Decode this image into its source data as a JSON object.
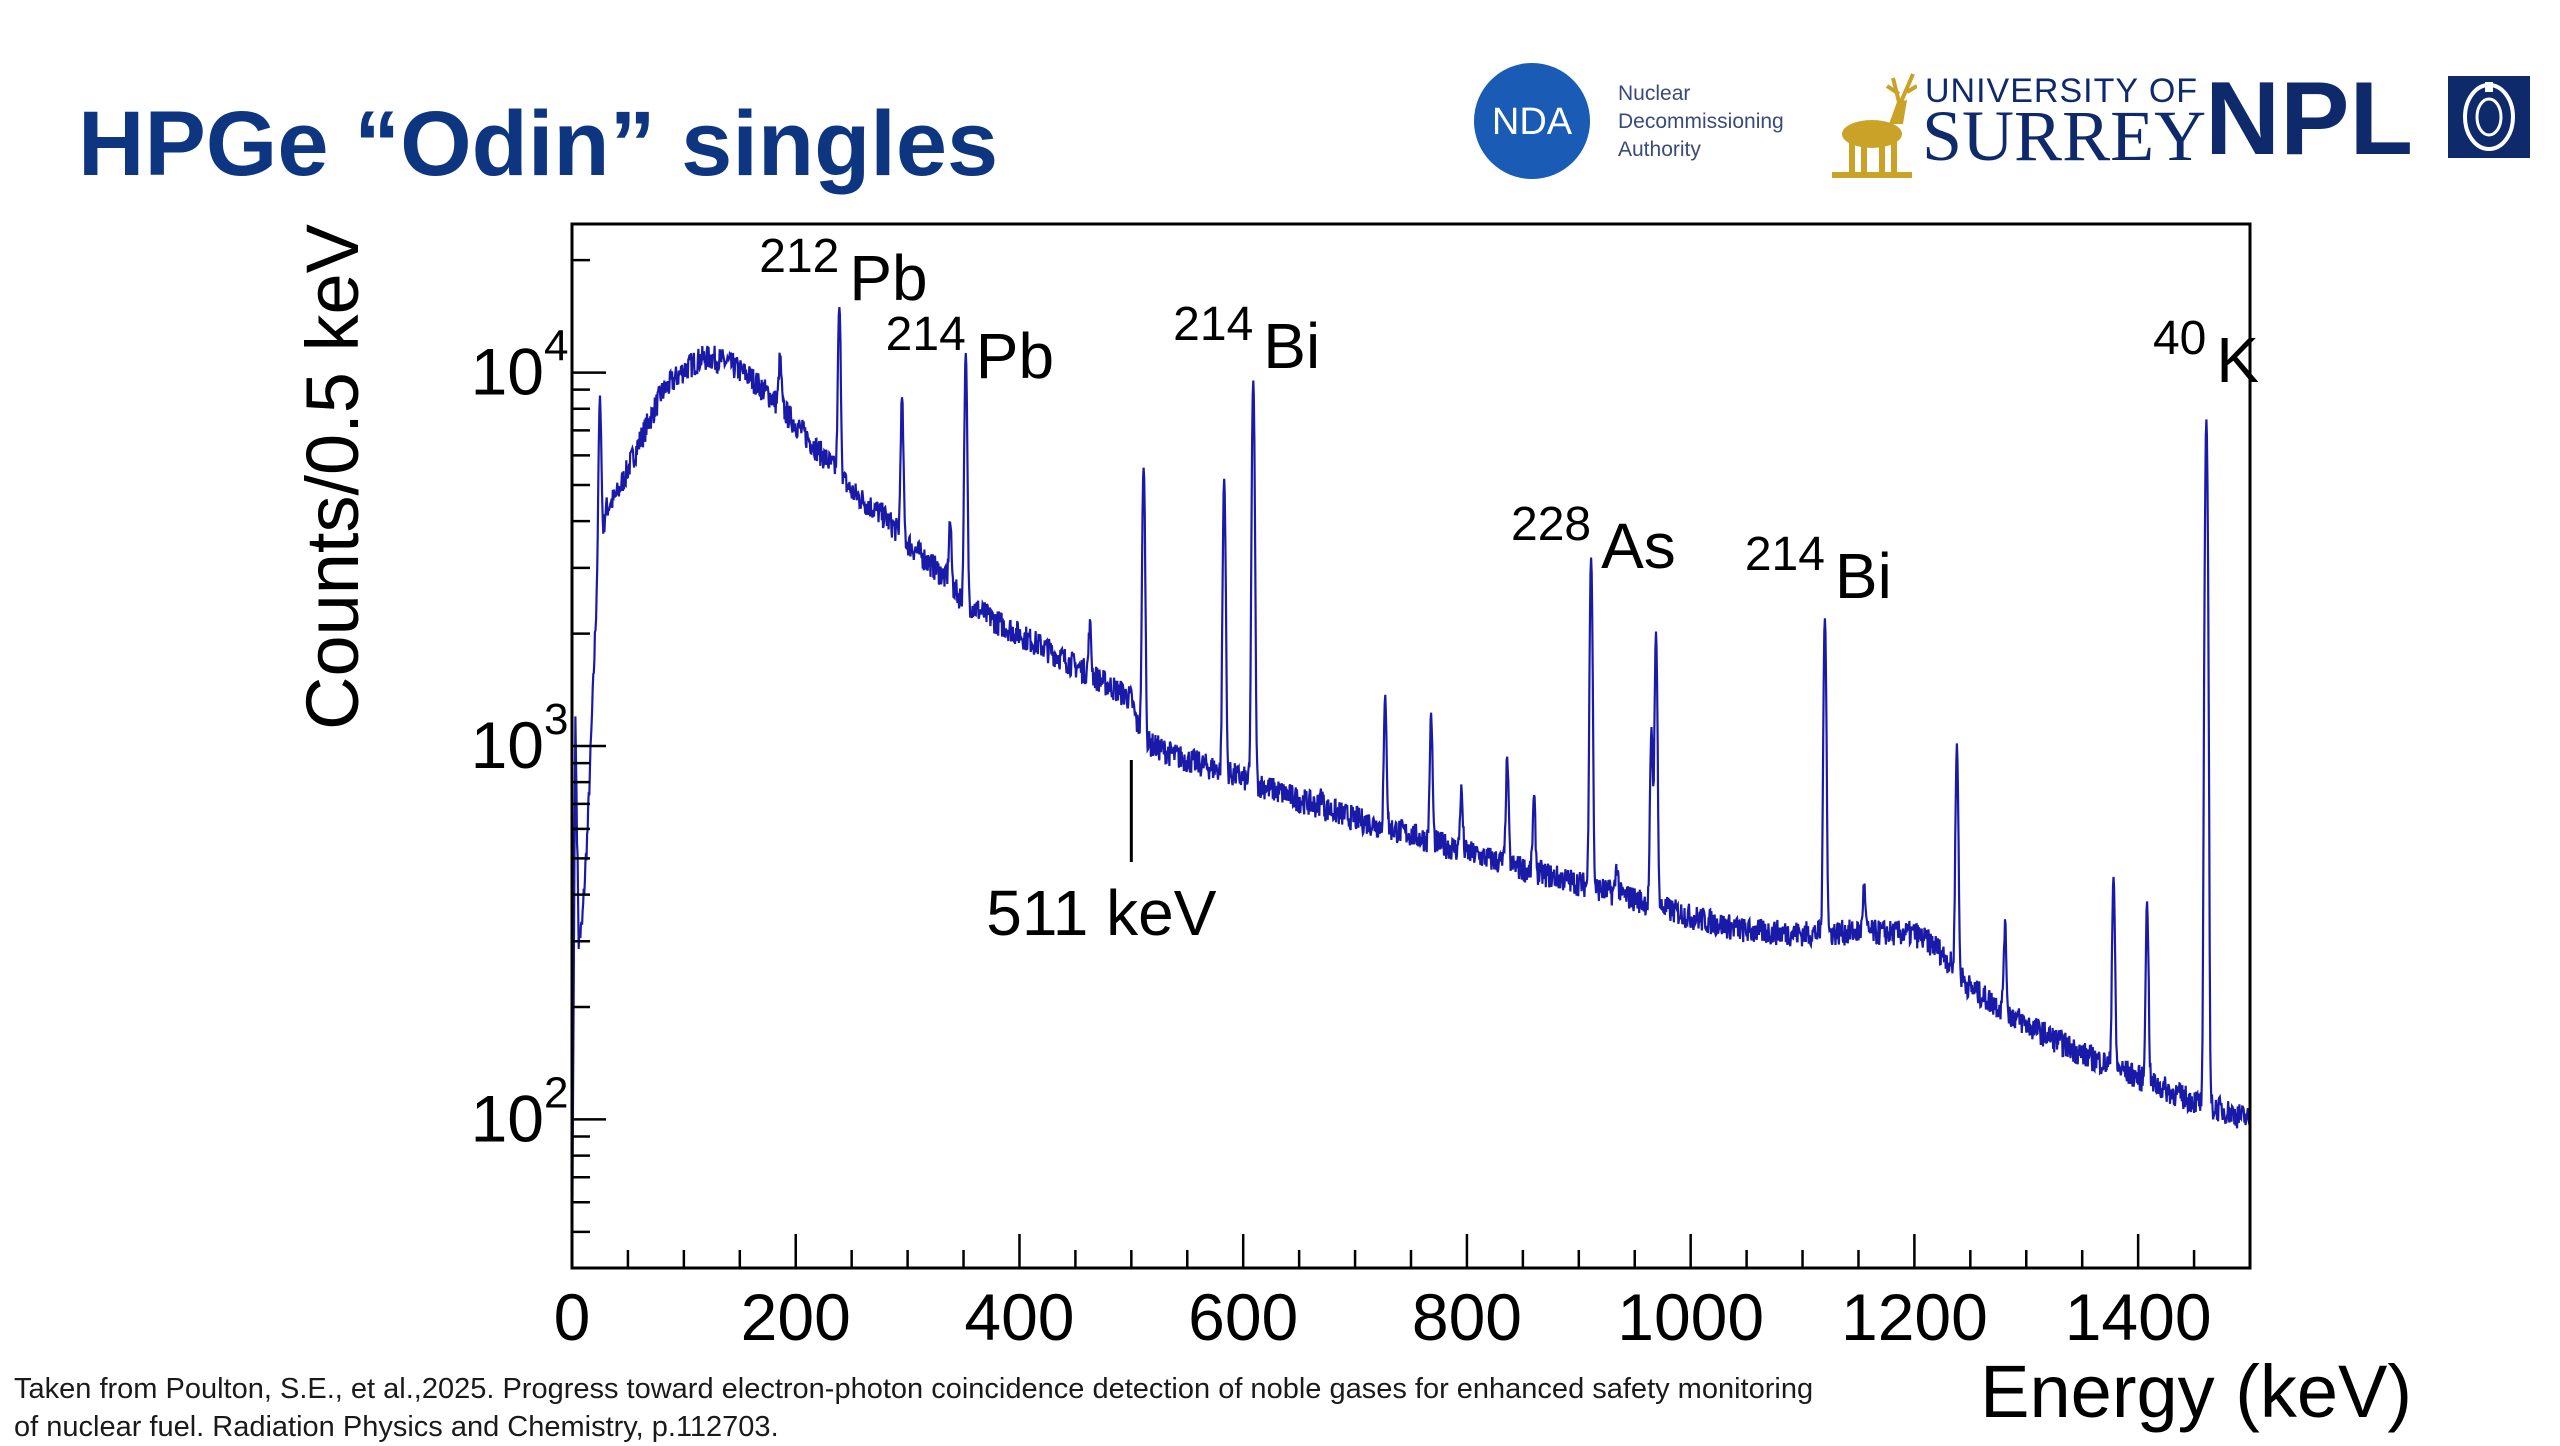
{
  "slide": {
    "title": "HPGe “Odin” singles",
    "citation": "Taken from Poulton, S.E., et al.,2025. Progress toward electron-photon coincidence detection of noble gases for enhanced safety monitoring of nuclear fuel. Radiation Physics and Chemistry, p.112703."
  },
  "logos": {
    "nda": {
      "mark": "NDA",
      "lines": [
        "Nuclear",
        "Decommissioning",
        "Authority"
      ],
      "color": "#1a5bb5"
    },
    "surrey": {
      "top": "UNIVERSITY OF",
      "main": "SURREY",
      "stag_color": "#c9a227"
    },
    "npl": {
      "text": "NPL"
    }
  },
  "chart_data": {
    "type": "line",
    "title": "",
    "xlabel": "Energy (keV)",
    "ylabel": "Counts/0.5 keV",
    "xlim": [
      0,
      1500
    ],
    "ylim": [
      40,
      25000
    ],
    "y_scale": "log",
    "x_ticks": [
      0,
      200,
      400,
      600,
      800,
      1000,
      1200,
      1400
    ],
    "y_ticks": [
      {
        "value": 100,
        "base": "10",
        "exp": "2"
      },
      {
        "value": 1000,
        "base": "10",
        "exp": "3"
      },
      {
        "value": 10000,
        "base": "10",
        "exp": "4"
      }
    ],
    "line_color": "#1a1aa8",
    "grid": false,
    "series": [
      {
        "continuum": [
          [
            0,
            40
          ],
          [
            3,
            1200
          ],
          [
            6,
            300
          ],
          [
            9,
            330
          ],
          [
            14,
            600
          ],
          [
            22,
            2500
          ],
          [
            30,
            4300
          ],
          [
            40,
            4700
          ],
          [
            60,
            6500
          ],
          [
            80,
            8800
          ],
          [
            100,
            10200
          ],
          [
            115,
            10900
          ],
          [
            125,
            11000
          ],
          [
            140,
            10600
          ],
          [
            160,
            9700
          ],
          [
            180,
            8500
          ],
          [
            200,
            7300
          ],
          [
            220,
            6200
          ],
          [
            238,
            5400
          ],
          [
            250,
            4800
          ],
          [
            280,
            4100
          ],
          [
            300,
            3500
          ],
          [
            330,
            2900
          ],
          [
            350,
            2450
          ],
          [
            380,
            2150
          ],
          [
            420,
            1850
          ],
          [
            460,
            1580
          ],
          [
            500,
            1340
          ],
          [
            505,
            1150
          ],
          [
            515,
            1020
          ],
          [
            540,
            940
          ],
          [
            580,
            860
          ],
          [
            600,
            820
          ],
          [
            650,
            720
          ],
          [
            700,
            640
          ],
          [
            750,
            580
          ],
          [
            800,
            520
          ],
          [
            850,
            470
          ],
          [
            900,
            430
          ],
          [
            950,
            390
          ],
          [
            1000,
            350
          ],
          [
            1050,
            320
          ],
          [
            1100,
            315
          ],
          [
            1150,
            318
          ],
          [
            1200,
            315
          ],
          [
            1220,
            290
          ],
          [
            1250,
            225
          ],
          [
            1300,
            180
          ],
          [
            1350,
            150
          ],
          [
            1400,
            130
          ],
          [
            1440,
            115
          ],
          [
            1480,
            105
          ],
          [
            1500,
            100
          ]
        ],
        "peaks": [
          {
            "energy": 25,
            "counts": 8500
          },
          {
            "energy": 186,
            "counts": 11000
          },
          {
            "energy": 239,
            "counts": 15000
          },
          {
            "energy": 295,
            "counts": 8500
          },
          {
            "energy": 338,
            "counts": 4000
          },
          {
            "energy": 352,
            "counts": 11200
          },
          {
            "energy": 463,
            "counts": 2100
          },
          {
            "energy": 511,
            "counts": 3300
          },
          {
            "energy": 511,
            "counts": 3400
          },
          {
            "energy": 583,
            "counts": 5200
          },
          {
            "energy": 609,
            "counts": 9500
          },
          {
            "energy": 670,
            "counts": 750
          },
          {
            "energy": 727,
            "counts": 1350
          },
          {
            "energy": 768,
            "counts": 1200
          },
          {
            "energy": 795,
            "counts": 760
          },
          {
            "energy": 836,
            "counts": 920
          },
          {
            "energy": 860,
            "counts": 720
          },
          {
            "energy": 911,
            "counts": 3200
          },
          {
            "energy": 934,
            "counts": 480
          },
          {
            "energy": 965,
            "counts": 1100
          },
          {
            "energy": 969,
            "counts": 2000
          },
          {
            "energy": 1120,
            "counts": 2200
          },
          {
            "energy": 1155,
            "counts": 420
          },
          {
            "energy": 1238,
            "counts": 1000
          },
          {
            "energy": 1281,
            "counts": 330
          },
          {
            "energy": 1378,
            "counts": 450
          },
          {
            "energy": 1408,
            "counts": 380
          },
          {
            "energy": 1461,
            "counts": 7500
          }
        ]
      }
    ],
    "annotations": [
      {
        "energy": 239,
        "mass": "212",
        "element": "Pb"
      },
      {
        "energy": 352,
        "mass": "214",
        "element": "Pb"
      },
      {
        "energy": 609,
        "mass": "214",
        "element": "Bi"
      },
      {
        "energy": 911,
        "mass": "228",
        "element": "As"
      },
      {
        "energy": 1120,
        "mass": "214",
        "element": "Bi"
      },
      {
        "energy": 1461,
        "mass": "40",
        "element": "K"
      }
    ],
    "marker_511": {
      "energy": 500,
      "label": "511 keV"
    }
  }
}
